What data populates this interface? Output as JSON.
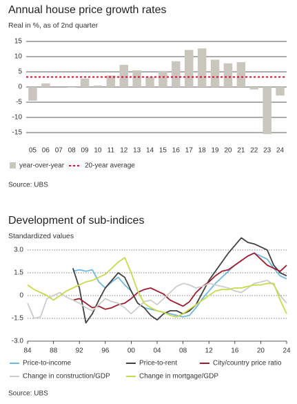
{
  "chart_data": [
    {
      "type": "bar",
      "title": "Annual house price growth rates",
      "subtitle": "Real in %, as of 2nd quarter",
      "source": "Source: UBS",
      "categories": [
        "05",
        "06",
        "07",
        "08",
        "09",
        "10",
        "11",
        "12",
        "13",
        "14",
        "15",
        "16",
        "17",
        "18",
        "19",
        "20",
        "21",
        "22",
        "23",
        "24"
      ],
      "series": [
        {
          "name": "year-over-year",
          "color": "#c9c6bd",
          "values": [
            -4.5,
            1.2,
            0,
            -0.2,
            2.8,
            0.5,
            3.8,
            7.3,
            5.5,
            3.3,
            5.3,
            8.5,
            12.2,
            12.7,
            9.0,
            7.8,
            8.2,
            -0.8,
            -15.5,
            -2.8
          ]
        }
      ],
      "average": {
        "name": "20-year average",
        "color": "#c8102e",
        "value": 3.3
      },
      "ylim": [
        -16,
        16
      ],
      "yticks": [
        -15,
        -10,
        -5,
        0,
        5,
        10,
        15
      ],
      "grid": true
    },
    {
      "type": "line",
      "title": "Development of sub-indices",
      "subtitle": "Standardized values",
      "source": "Source: UBS",
      "x": [
        1984,
        1985,
        1986,
        1987,
        1988,
        1989,
        1990,
        1991,
        1992,
        1993,
        1994,
        1995,
        1996,
        1997,
        1998,
        1999,
        2000,
        2001,
        2002,
        2003,
        2004,
        2005,
        2006,
        2007,
        2008,
        2009,
        2010,
        2011,
        2012,
        2013,
        2014,
        2015,
        2016,
        2017,
        2018,
        2019,
        2020,
        2021,
        2022,
        2023,
        2024
      ],
      "series": [
        {
          "name": "Price-to-income",
          "color": "#6cb8e0",
          "values": [
            null,
            null,
            null,
            null,
            null,
            null,
            null,
            1.6,
            1.7,
            1.6,
            1.7,
            0.9,
            0.5,
            0.9,
            1.2,
            0.7,
            0.3,
            -0.5,
            -0.8,
            -0.9,
            -1.0,
            -1.1,
            -1.2,
            -1.3,
            -1.4,
            -1.3,
            -0.8,
            -0.2,
            0.3,
            0.8,
            1.2,
            1.6,
            2.0,
            2.3,
            2.6,
            2.8,
            2.6,
            2.4,
            1.8,
            1.3,
            1.1
          ]
        },
        {
          "name": "Price-to-rent",
          "color": "#404040",
          "values": [
            null,
            null,
            null,
            null,
            null,
            null,
            null,
            1.8,
            0.5,
            -1.8,
            -1.2,
            -0.3,
            0.5,
            1.0,
            1.5,
            1.2,
            0.3,
            -0.5,
            -0.8,
            -1.3,
            -1.6,
            -1.2,
            -1.0,
            -1.0,
            -1.2,
            -1.0,
            -0.6,
            0.2,
            1.0,
            1.6,
            2.2,
            2.8,
            3.3,
            3.8,
            3.5,
            3.4,
            3.2,
            3.0,
            2.0,
            1.5,
            1.3
          ]
        },
        {
          "name": "City/country price ratio",
          "color": "#9e1b2e",
          "values": [
            null,
            null,
            null,
            null,
            null,
            null,
            null,
            -0.3,
            -0.2,
            -0.5,
            -0.8,
            -0.7,
            -0.9,
            -0.8,
            -0.6,
            -0.5,
            -0.2,
            0.2,
            0.4,
            0.5,
            0.3,
            0.1,
            -0.3,
            -0.5,
            -0.7,
            -0.4,
            0.2,
            0.6,
            0.9,
            1.3,
            1.6,
            1.7,
            2.0,
            2.3,
            2.6,
            2.8,
            2.4,
            2.0,
            1.8,
            1.6,
            2.0
          ]
        },
        {
          "name": "Change in construction/GDP",
          "color": "#cccccc",
          "values": [
            -0.5,
            -1.5,
            -1.4,
            -0.2,
            0.0,
            0.2,
            -0.1,
            -0.3,
            -0.5,
            -0.8,
            -1.0,
            -0.6,
            -0.2,
            -0.4,
            -0.5,
            -0.8,
            -1.2,
            -0.8,
            -0.4,
            -0.3,
            -0.6,
            -0.2,
            0.2,
            0.6,
            0.8,
            0.7,
            0.5,
            0.6,
            0.8,
            0.7,
            0.6,
            0.5,
            0.3,
            0.2,
            0.5,
            0.8,
            0.9,
            1.0,
            0.7,
            0.0,
            -0.5
          ]
        },
        {
          "name": "Change in mortgage/GDP",
          "color": "#c8da4a",
          "values": [
            0.7,
            0.4,
            0.2,
            0.0,
            -0.3,
            0.0,
            0.3,
            0.5,
            0.7,
            0.9,
            1.0,
            1.2,
            1.4,
            1.8,
            2.2,
            2.5,
            1.5,
            0.3,
            -0.5,
            -0.8,
            -1.0,
            -1.1,
            -1.3,
            -1.4,
            -1.2,
            -0.9,
            -0.6,
            -0.3,
            0.0,
            0.3,
            0.4,
            0.4,
            0.5,
            0.5,
            0.6,
            0.7,
            0.7,
            0.8,
            0.8,
            -0.3,
            -1.2
          ]
        }
      ],
      "xlim": [
        1984,
        2024
      ],
      "xticks": [
        {
          "value": 1984,
          "label": "84"
        },
        {
          "value": 1988,
          "label": "88"
        },
        {
          "value": 1992,
          "label": "92"
        },
        {
          "value": 1996,
          "label": "96"
        },
        {
          "value": 2000,
          "label": "00"
        },
        {
          "value": 2004,
          "label": "04"
        },
        {
          "value": 2008,
          "label": "08"
        },
        {
          "value": 2012,
          "label": "12"
        },
        {
          "value": 2016,
          "label": "16"
        },
        {
          "value": 2020,
          "label": "20"
        },
        {
          "value": 2024,
          "label": "24"
        }
      ],
      "ylim": [
        -3,
        3.9
      ],
      "yticks": [
        {
          "value": -3,
          "label": "-3.0"
        },
        -1.5,
        0,
        1.5,
        {
          "value": 3,
          "label": "3.0"
        }
      ],
      "grid": true
    }
  ]
}
